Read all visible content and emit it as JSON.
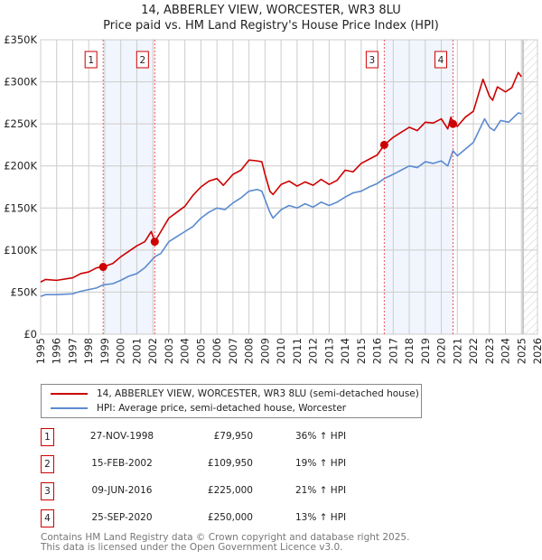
{
  "title": "14, ABBERLEY VIEW, WORCESTER, WR3 8LU",
  "subtitle": "Price paid vs. HM Land Registry's House Price Index (HPI)",
  "chart_data": {
    "type": "line",
    "title": "14, ABBERLEY VIEW, WORCESTER, WR3 8LU",
    "subtitle": "Price paid vs. HM Land Registry's House Price Index (HPI)",
    "xlim": [
      1995,
      2026
    ],
    "ylim": [
      0,
      350000
    ],
    "x_ticks": [
      "1995",
      "1996",
      "1997",
      "1998",
      "1999",
      "2000",
      "2001",
      "2002",
      "2003",
      "2004",
      "2005",
      "2006",
      "2007",
      "2008",
      "2009",
      "2010",
      "2011",
      "2012",
      "2013",
      "2014",
      "2015",
      "2016",
      "2017",
      "2018",
      "2019",
      "2020",
      "2021",
      "2022",
      "2023",
      "2024",
      "2025",
      "2026"
    ],
    "y_ticks": [
      {
        "v": 0,
        "label": "£0"
      },
      {
        "v": 50000,
        "label": "£50K"
      },
      {
        "v": 100000,
        "label": "£100K"
      },
      {
        "v": 150000,
        "label": "£150K"
      },
      {
        "v": 200000,
        "label": "£200K"
      },
      {
        "v": 250000,
        "label": "£250K"
      },
      {
        "v": 300000,
        "label": "£300K"
      },
      {
        "v": 350000,
        "label": "£350K"
      }
    ],
    "grid": true,
    "forecast_start": 2025.1,
    "shaded_ranges": [
      [
        1998.9,
        2002.12
      ],
      [
        2016.44,
        2020.73
      ]
    ],
    "series": [
      {
        "name": "14, ABBERLEY VIEW, WORCESTER, WR3 8LU (semi-detached house)",
        "color": "#cc0000",
        "points": [
          [
            1995,
            62000
          ],
          [
            1995.3,
            65000
          ],
          [
            1996,
            64000
          ],
          [
            1997,
            67000
          ],
          [
            1997.5,
            72000
          ],
          [
            1998,
            74000
          ],
          [
            1998.5,
            79000
          ],
          [
            1998.9,
            80000
          ],
          [
            1999.5,
            84000
          ],
          [
            2000,
            92000
          ],
          [
            2001,
            105000
          ],
          [
            2001.5,
            110000
          ],
          [
            2001.9,
            122000
          ],
          [
            2002.12,
            110000
          ],
          [
            2002.5,
            122000
          ],
          [
            2003,
            138000
          ],
          [
            2003.5,
            145000
          ],
          [
            2004,
            152000
          ],
          [
            2004.5,
            165000
          ],
          [
            2005,
            175000
          ],
          [
            2005.5,
            182000
          ],
          [
            2006,
            185000
          ],
          [
            2006.4,
            177000
          ],
          [
            2007,
            190000
          ],
          [
            2007.5,
            195000
          ],
          [
            2008,
            207000
          ],
          [
            2008.5,
            206000
          ],
          [
            2008.8,
            205000
          ],
          [
            2009,
            190000
          ],
          [
            2009.3,
            170000
          ],
          [
            2009.5,
            166000
          ],
          [
            2010,
            178000
          ],
          [
            2010.5,
            182000
          ],
          [
            2011,
            176000
          ],
          [
            2011.5,
            181000
          ],
          [
            2012,
            177000
          ],
          [
            2012.5,
            184000
          ],
          [
            2013,
            178000
          ],
          [
            2013.5,
            183000
          ],
          [
            2014,
            195000
          ],
          [
            2014.5,
            193000
          ],
          [
            2015,
            203000
          ],
          [
            2015.5,
            208000
          ],
          [
            2016,
            213000
          ],
          [
            2016.44,
            225000
          ],
          [
            2017,
            234000
          ],
          [
            2017.5,
            240000
          ],
          [
            2018,
            246000
          ],
          [
            2018.5,
            242000
          ],
          [
            2019,
            252000
          ],
          [
            2019.5,
            251000
          ],
          [
            2020,
            256000
          ],
          [
            2020.4,
            244000
          ],
          [
            2020.6,
            258000
          ],
          [
            2020.73,
            250000
          ],
          [
            2021,
            247000
          ],
          [
            2021.5,
            258000
          ],
          [
            2022,
            265000
          ],
          [
            2022.6,
            303000
          ],
          [
            2023,
            283000
          ],
          [
            2023.2,
            278000
          ],
          [
            2023.5,
            294000
          ],
          [
            2024,
            288000
          ],
          [
            2024.4,
            293000
          ],
          [
            2024.8,
            311000
          ],
          [
            2025,
            306000
          ]
        ]
      },
      {
        "name": "HPI: Average price, semi-detached house, Worcester",
        "color": "#5b8bd0",
        "points": [
          [
            1995,
            45000
          ],
          [
            1995.3,
            47000
          ],
          [
            1996,
            47000
          ],
          [
            1997,
            48000
          ],
          [
            1997.5,
            51000
          ],
          [
            1998,
            53000
          ],
          [
            1998.5,
            55000
          ],
          [
            1998.9,
            58700
          ],
          [
            1999.5,
            60000
          ],
          [
            2000,
            64000
          ],
          [
            2000.5,
            69000
          ],
          [
            2001,
            72000
          ],
          [
            2001.5,
            79000
          ],
          [
            2002.12,
            92000
          ],
          [
            2002.5,
            96000
          ],
          [
            2003,
            110000
          ],
          [
            2003.5,
            116000
          ],
          [
            2004,
            122000
          ],
          [
            2004.5,
            128000
          ],
          [
            2005,
            138000
          ],
          [
            2005.5,
            145000
          ],
          [
            2006,
            150000
          ],
          [
            2006.5,
            148000
          ],
          [
            2007,
            156000
          ],
          [
            2007.5,
            162000
          ],
          [
            2008,
            170000
          ],
          [
            2008.5,
            172000
          ],
          [
            2008.8,
            170000
          ],
          [
            2009,
            160000
          ],
          [
            2009.3,
            145000
          ],
          [
            2009.5,
            138000
          ],
          [
            2010,
            148000
          ],
          [
            2010.5,
            153000
          ],
          [
            2011,
            150000
          ],
          [
            2011.5,
            155000
          ],
          [
            2012,
            151000
          ],
          [
            2012.5,
            157000
          ],
          [
            2013,
            153000
          ],
          [
            2013.5,
            157000
          ],
          [
            2014,
            163000
          ],
          [
            2014.5,
            168000
          ],
          [
            2015,
            170000
          ],
          [
            2015.5,
            175000
          ],
          [
            2016,
            179000
          ],
          [
            2016.44,
            185000
          ],
          [
            2017,
            190000
          ],
          [
            2017.5,
            195000
          ],
          [
            2018,
            200000
          ],
          [
            2018.5,
            198000
          ],
          [
            2019,
            205000
          ],
          [
            2019.5,
            203000
          ],
          [
            2020,
            206000
          ],
          [
            2020.4,
            200000
          ],
          [
            2020.73,
            218000
          ],
          [
            2021,
            212000
          ],
          [
            2021.5,
            220000
          ],
          [
            2022,
            228000
          ],
          [
            2022.7,
            256000
          ],
          [
            2023,
            246000
          ],
          [
            2023.3,
            242000
          ],
          [
            2023.7,
            254000
          ],
          [
            2024.2,
            252000
          ],
          [
            2024.8,
            263000
          ],
          [
            2025,
            262000
          ]
        ]
      }
    ],
    "sales": [
      {
        "id": "1",
        "x": 1998.9,
        "y": 79950
      },
      {
        "id": "2",
        "x": 2002.12,
        "y": 109950
      },
      {
        "id": "3",
        "x": 2016.44,
        "y": 225000
      },
      {
        "id": "4",
        "x": 2020.73,
        "y": 250000
      }
    ]
  },
  "legend": {
    "items": [
      {
        "label": "14, ABBERLEY VIEW, WORCESTER, WR3 8LU (semi-detached house)",
        "color": "#cc0000"
      },
      {
        "label": "HPI: Average price, semi-detached house, Worcester",
        "color": "#5b8bd0"
      }
    ]
  },
  "transactions": [
    {
      "id": "1",
      "date": "27-NOV-1998",
      "price": "£79,950",
      "hpi": "36% ↑ HPI"
    },
    {
      "id": "2",
      "date": "15-FEB-2002",
      "price": "£109,950",
      "hpi": "19% ↑ HPI"
    },
    {
      "id": "3",
      "date": "09-JUN-2016",
      "price": "£225,000",
      "hpi": "21% ↑ HPI"
    },
    {
      "id": "4",
      "date": "25-SEP-2020",
      "price": "£250,000",
      "hpi": "13% ↑ HPI"
    }
  ],
  "footer": {
    "line1": "Contains HM Land Registry data © Crown copyright and database right 2025.",
    "line2": "This data is licensed under the Open Government Licence v3.0."
  }
}
